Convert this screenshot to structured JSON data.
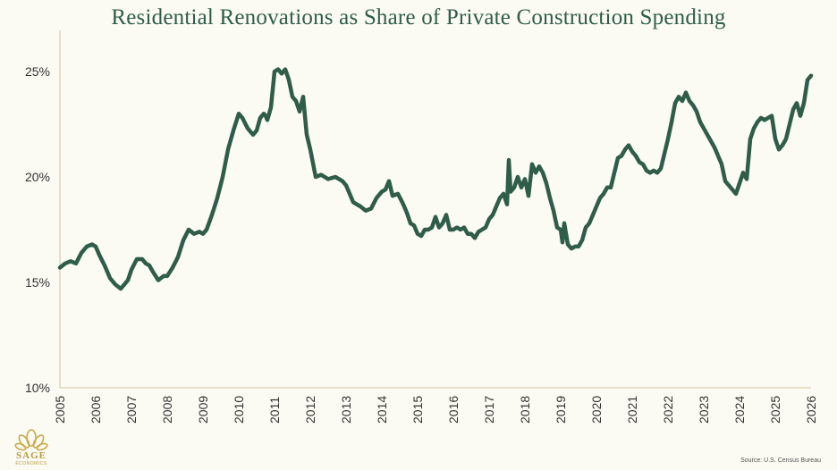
{
  "chart_data": {
    "type": "line",
    "title": "Residential Renovations as Share of Private Construction Spending",
    "xlabel": "",
    "ylabel": "",
    "xlim": [
      2005,
      2026
    ],
    "ylim": [
      10,
      25
    ],
    "y_ticks": [
      "10%",
      "15%",
      "20%",
      "25%"
    ],
    "x_ticks": [
      "2005",
      "2006",
      "2007",
      "2008",
      "2009",
      "2010",
      "2011",
      "2012",
      "2013",
      "2014",
      "2015",
      "2016",
      "2017",
      "2018",
      "2019",
      "2020",
      "2021",
      "2022",
      "2023",
      "2024",
      "2025",
      "2026"
    ],
    "grid": false,
    "line_color": "#2f5d4a",
    "series": [
      {
        "x": [
          2005.0,
          2005.15,
          2005.3,
          2005.45,
          2005.6,
          2005.75,
          2005.9,
          2006.0,
          2006.1,
          2006.25,
          2006.4,
          2006.55,
          2006.7,
          2006.8,
          2006.9,
          2007.0,
          2007.15,
          2007.3,
          2007.4,
          2007.5,
          2007.6,
          2007.75,
          2007.9,
          2008.0,
          2008.15,
          2008.3,
          2008.45,
          2008.6,
          2008.75,
          2008.9,
          2009.0,
          2009.1,
          2009.25,
          2009.4,
          2009.55,
          2009.7,
          2009.85,
          2010.0,
          2010.1,
          2010.25,
          2010.4,
          2010.5,
          2010.6,
          2010.7,
          2010.75,
          2010.8,
          2010.9,
          2011.0,
          2011.1,
          2011.2,
          2011.3,
          2011.4,
          2011.5,
          2011.6,
          2011.7,
          2011.8,
          2011.9,
          2012.0,
          2012.15,
          2012.3,
          2012.5,
          2012.7,
          2012.9,
          2013.0,
          2013.2,
          2013.4,
          2013.55,
          2013.7,
          2013.85,
          2014.0,
          2014.1,
          2014.2,
          2014.3,
          2014.45,
          2014.6,
          2014.7,
          2014.8,
          2014.9,
          2015.0,
          2015.1,
          2015.2,
          2015.3,
          2015.4,
          2015.5,
          2015.6,
          2015.7,
          2015.8,
          2015.9,
          2016.0,
          2016.1,
          2016.2,
          2016.3,
          2016.4,
          2016.5,
          2016.6,
          2016.7,
          2016.8,
          2016.9,
          2017.0,
          2017.1,
          2017.2,
          2017.3,
          2017.4,
          2017.5,
          2017.55,
          2017.6,
          2017.7,
          2017.8,
          2017.9,
          2018.0,
          2018.05,
          2018.1,
          2018.2,
          2018.3,
          2018.4,
          2018.5,
          2018.6,
          2018.7,
          2018.8,
          2018.9,
          2019.0,
          2019.05,
          2019.1,
          2019.2,
          2019.3,
          2019.4,
          2019.5,
          2019.6,
          2019.7,
          2019.8,
          2019.9,
          2020.0,
          2020.1,
          2020.2,
          2020.3,
          2020.4,
          2020.5,
          2020.6,
          2020.7,
          2020.8,
          2020.9,
          2021.0,
          2021.1,
          2021.2,
          2021.3,
          2021.4,
          2021.5,
          2021.6,
          2021.7,
          2021.8,
          2021.9,
          2022.0,
          2022.1,
          2022.2,
          2022.3,
          2022.4,
          2022.5,
          2022.6,
          2022.7,
          2022.8,
          2022.9,
          2023.0,
          2023.1,
          2023.2,
          2023.3,
          2023.4,
          2023.5,
          2023.6,
          2023.7,
          2023.8,
          2023.9,
          2024.0,
          2024.1,
          2024.2,
          2024.3,
          2024.4,
          2024.5,
          2024.6,
          2024.7,
          2024.8,
          2024.9,
          2025.0,
          2025.1,
          2025.2,
          2025.3,
          2025.4,
          2025.5,
          2025.6,
          2025.7,
          2025.8,
          2025.9,
          2026.0
        ],
        "y": [
          15.7,
          15.9,
          16.0,
          15.9,
          16.4,
          16.7,
          16.8,
          16.7,
          16.3,
          15.8,
          15.2,
          14.9,
          14.7,
          14.9,
          15.1,
          15.6,
          16.1,
          16.1,
          15.9,
          15.8,
          15.5,
          15.1,
          15.3,
          15.3,
          15.7,
          16.2,
          17.0,
          17.5,
          17.3,
          17.4,
          17.3,
          17.5,
          18.2,
          19.0,
          20.0,
          21.3,
          22.2,
          23.0,
          22.8,
          22.3,
          22.0,
          22.2,
          22.8,
          23.0,
          22.9,
          22.7,
          23.3,
          25.0,
          25.1,
          24.9,
          25.1,
          24.6,
          23.8,
          23.6,
          23.1,
          23.8,
          22.0,
          21.3,
          20.0,
          20.1,
          19.9,
          20.0,
          19.8,
          19.6,
          18.8,
          18.6,
          18.4,
          18.5,
          19.0,
          19.3,
          19.4,
          19.8,
          19.1,
          19.2,
          18.7,
          18.3,
          17.8,
          17.7,
          17.3,
          17.2,
          17.5,
          17.5,
          17.6,
          18.1,
          17.6,
          17.8,
          18.2,
          17.5,
          17.5,
          17.6,
          17.5,
          17.6,
          17.3,
          17.3,
          17.1,
          17.4,
          17.5,
          17.6,
          18.0,
          18.2,
          18.6,
          19.0,
          19.2,
          18.7,
          20.8,
          19.3,
          19.5,
          20.0,
          19.5,
          19.9,
          19.5,
          19.1,
          20.6,
          20.2,
          20.5,
          20.2,
          19.7,
          19.0,
          18.4,
          17.6,
          17.5,
          16.9,
          17.8,
          16.8,
          16.6,
          16.7,
          16.7,
          17.0,
          17.6,
          17.8,
          18.2,
          18.6,
          19.0,
          19.2,
          19.5,
          19.5,
          20.2,
          20.9,
          21.0,
          21.3,
          21.5,
          21.2,
          21.0,
          20.7,
          20.6,
          20.3,
          20.2,
          20.3,
          20.2,
          20.4,
          21.1,
          21.8,
          22.6,
          23.5,
          23.8,
          23.6,
          24.0,
          23.6,
          23.4,
          23.1,
          22.6,
          22.3,
          22.0,
          21.7,
          21.4,
          21.0,
          20.6,
          19.8,
          19.6,
          19.4,
          19.2,
          19.7,
          20.2,
          19.9,
          21.8,
          22.3,
          22.6,
          22.8,
          22.7,
          22.8,
          22.9,
          21.8,
          21.3,
          21.5,
          21.8,
          22.5,
          23.2,
          23.5,
          22.9,
          23.5,
          24.6,
          24.8
        ]
      }
    ],
    "source_text": "Source: U.S. Census Bureau"
  },
  "logo": {
    "name": "SAGE",
    "sub": "ECONOMICS"
  }
}
